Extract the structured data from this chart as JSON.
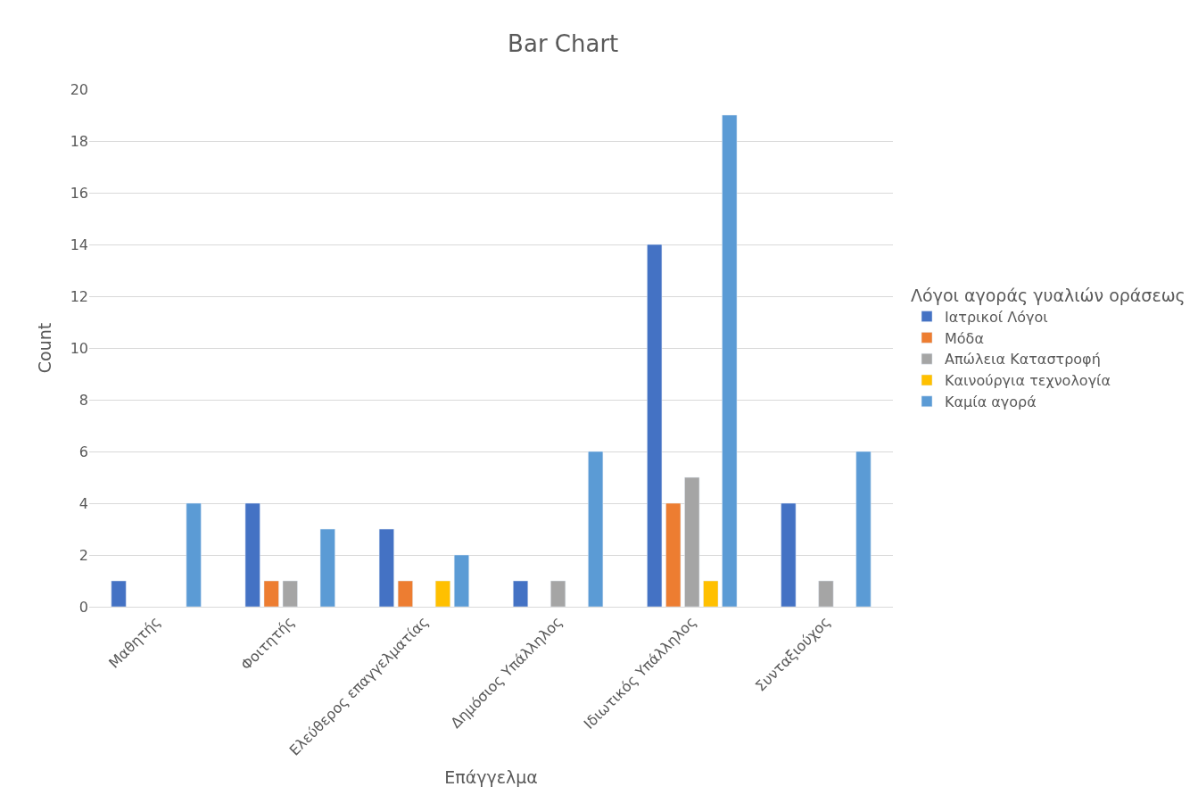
{
  "chart_data": {
    "type": "bar",
    "title": "Bar Chart",
    "xlabel": "Επάγγελμα",
    "ylabel": "Count",
    "legend_title": "Λόγοι αγοράς γυαλιών οράσεως",
    "categories": [
      "Μαθητής",
      "Φοιτητής",
      "Ελεύθερος επαγγελματίας",
      "Δημόσιος Υπάλληλος",
      "Ιδιωτικός Υπάλληλος",
      "Συνταξιούχος"
    ],
    "series": [
      {
        "name": "Ιατρικοί Λόγοι",
        "color": "#4472c4",
        "values": [
          1,
          4,
          3,
          1,
          14,
          4
        ]
      },
      {
        "name": "Μόδα",
        "color": "#ed7d31",
        "values": [
          null,
          1,
          1,
          null,
          4,
          null
        ]
      },
      {
        "name": "Απώλεια Καταστροφή",
        "color": "#a5a5a5",
        "values": [
          null,
          1,
          null,
          1,
          5,
          1
        ]
      },
      {
        "name": "Καινούργια τεχνολογία",
        "color": "#ffc000",
        "values": [
          null,
          null,
          1,
          null,
          1,
          null
        ]
      },
      {
        "name": "Καμία αγορά",
        "color": "#5b9bd5",
        "values": [
          4,
          3,
          2,
          6,
          19,
          6
        ]
      }
    ],
    "ylim": [
      0,
      20
    ],
    "yticks": [
      0,
      2,
      4,
      6,
      8,
      10,
      12,
      14,
      16,
      18,
      20
    ],
    "grid": "y",
    "legend": "right"
  }
}
